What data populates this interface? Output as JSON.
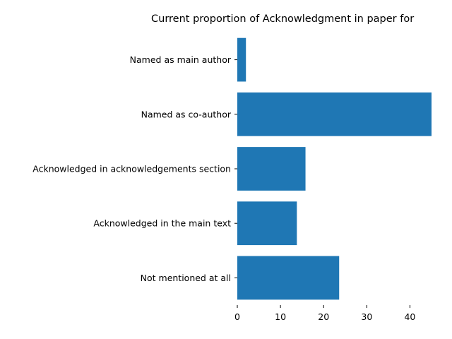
{
  "chart_data": {
    "type": "bar",
    "orientation": "horizontal",
    "title": "Current proportion of Acknowledgment in paper for",
    "xlabel": "",
    "ylabel": "",
    "categories": [
      "Named as main author",
      "Named as co-author",
      "Acknowledged in acknowledgements section",
      "Acknowledged in the main text",
      "Not mentioned at all"
    ],
    "values": [
      2,
      45,
      15.8,
      13.8,
      23.6
    ],
    "xlim": [
      0,
      45
    ],
    "xticks": [
      "0",
      "10",
      "20",
      "30",
      "40"
    ],
    "grid": false,
    "legend": "none",
    "bar_color": "#1f77b4"
  }
}
